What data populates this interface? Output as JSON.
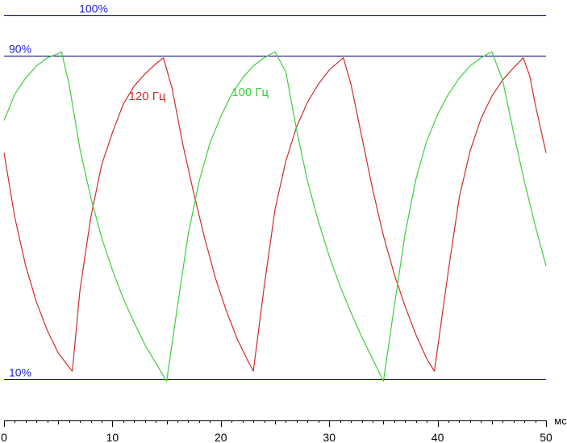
{
  "chart_data": {
    "type": "line",
    "x_unit": "мс",
    "xlim": [
      0,
      50
    ],
    "ylim": [
      5,
      106
    ],
    "x_ticks": [
      0,
      10,
      20,
      30,
      40,
      50
    ],
    "grid": false,
    "reference_lines": [
      {
        "value": 100,
        "label": "100%"
      },
      {
        "value": 90,
        "label": "90%"
      },
      {
        "value": 10,
        "label": "10%"
      }
    ],
    "colors": {
      "reference": "#00007f",
      "reference_label": "#1f1fcf",
      "series_120": "#d42a2a",
      "series_100": "#3ad03a"
    },
    "series": [
      {
        "name": "120 Гц",
        "color": "#d42a2a",
        "points": [
          [
            0,
            66
          ],
          [
            1,
            50
          ],
          [
            2,
            38
          ],
          [
            3,
            29
          ],
          [
            4,
            22
          ],
          [
            5,
            16.5
          ],
          [
            6,
            13
          ],
          [
            6.3,
            12
          ],
          [
            7,
            32
          ],
          [
            8,
            50
          ],
          [
            9,
            63
          ],
          [
            10,
            71
          ],
          [
            11,
            78
          ],
          [
            12,
            82.5
          ],
          [
            13,
            85.5
          ],
          [
            14,
            88
          ],
          [
            14.7,
            89.5
          ],
          [
            15.5,
            82
          ],
          [
            16.5,
            68
          ],
          [
            17.5,
            56
          ],
          [
            18.5,
            45
          ],
          [
            19.5,
            35
          ],
          [
            20.5,
            27
          ],
          [
            21.5,
            20
          ],
          [
            22.5,
            14.5
          ],
          [
            23.0,
            12
          ],
          [
            24,
            33
          ],
          [
            25,
            52
          ],
          [
            26,
            64
          ],
          [
            27,
            72.5
          ],
          [
            28,
            78.5
          ],
          [
            29,
            83
          ],
          [
            30,
            86.5
          ],
          [
            31.3,
            89.5
          ],
          [
            32,
            83
          ],
          [
            33,
            70
          ],
          [
            34,
            57
          ],
          [
            35,
            45.5
          ],
          [
            36,
            36
          ],
          [
            37,
            28
          ],
          [
            38,
            21
          ],
          [
            39,
            15
          ],
          [
            39.7,
            12
          ],
          [
            41,
            37
          ],
          [
            42,
            55
          ],
          [
            43,
            66.5
          ],
          [
            44,
            74.5
          ],
          [
            45,
            80
          ],
          [
            46,
            84
          ],
          [
            47,
            87
          ],
          [
            47.9,
            89.5
          ],
          [
            48.5,
            85
          ],
          [
            49,
            78
          ],
          [
            50,
            66
          ]
        ],
        "label": {
          "text": "120 Гц",
          "x": 11.5,
          "y": 79
        }
      },
      {
        "name": "100 Гц",
        "color": "#3ad03a",
        "points": [
          [
            0,
            74
          ],
          [
            1,
            80.5
          ],
          [
            2,
            84.5
          ],
          [
            3,
            87.5
          ],
          [
            4,
            89.5
          ],
          [
            5,
            90.5
          ],
          [
            5.3,
            91
          ],
          [
            6,
            83
          ],
          [
            7,
            67
          ],
          [
            8,
            55
          ],
          [
            9,
            45
          ],
          [
            10,
            37
          ],
          [
            11,
            30
          ],
          [
            12,
            24
          ],
          [
            13,
            18.5
          ],
          [
            14,
            14
          ],
          [
            15.0,
            9.5
          ],
          [
            16,
            28
          ],
          [
            17,
            46
          ],
          [
            18,
            59
          ],
          [
            19,
            68.5
          ],
          [
            20,
            75
          ],
          [
            21,
            80.5
          ],
          [
            22,
            84.5
          ],
          [
            23,
            87.5
          ],
          [
            24,
            89.5
          ],
          [
            25.0,
            91
          ],
          [
            26,
            86
          ],
          [
            27,
            71.5
          ],
          [
            28,
            59
          ],
          [
            29,
            49
          ],
          [
            30,
            40.5
          ],
          [
            31,
            33
          ],
          [
            32,
            26.5
          ],
          [
            33,
            20.5
          ],
          [
            34,
            15
          ],
          [
            35.0,
            9.5
          ],
          [
            36,
            28
          ],
          [
            37,
            46
          ],
          [
            38,
            59.5
          ],
          [
            39,
            69
          ],
          [
            40,
            75.5
          ],
          [
            41,
            80.5
          ],
          [
            42,
            84.5
          ],
          [
            43,
            87.5
          ],
          [
            44,
            89.5
          ],
          [
            45.0,
            91
          ],
          [
            46,
            84
          ],
          [
            47,
            71
          ],
          [
            48,
            59
          ],
          [
            49,
            48
          ],
          [
            50,
            38
          ]
        ],
        "label": {
          "text": "100 Гц",
          "x": 21,
          "y": 80
        }
      }
    ]
  }
}
